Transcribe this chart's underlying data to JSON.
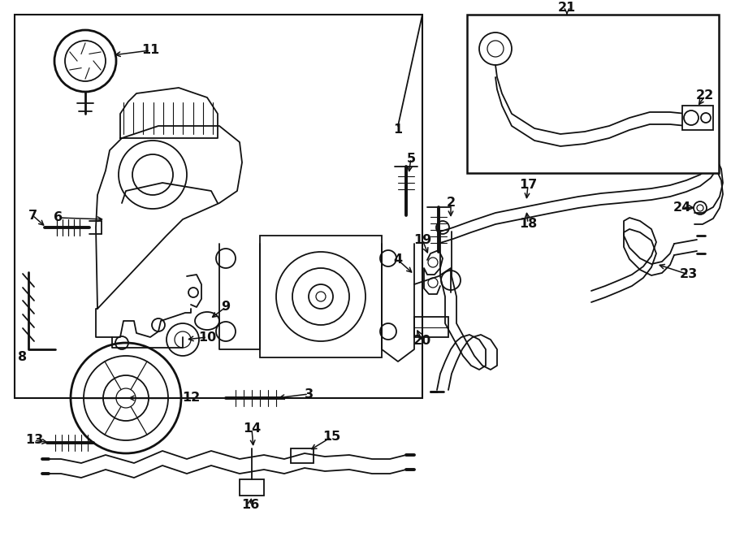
{
  "bg_color": "#ffffff",
  "lc": "#111111",
  "fig_width": 9.0,
  "fig_height": 6.61,
  "dpi": 100,
  "lw": 1.3,
  "lw2": 2.0,
  "lw3": 2.8,
  "fs": 11.5
}
